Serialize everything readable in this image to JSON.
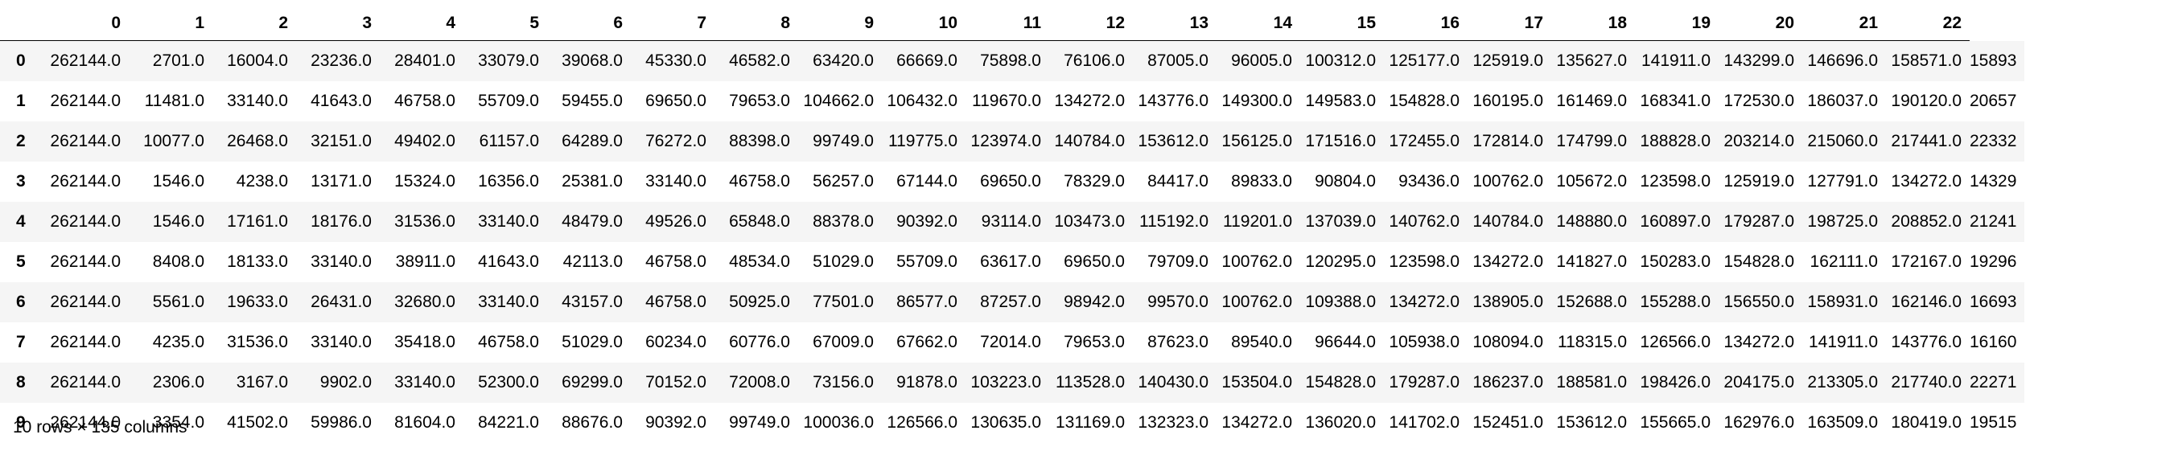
{
  "table": {
    "columns": [
      "0",
      "1",
      "2",
      "3",
      "4",
      "5",
      "6",
      "7",
      "8",
      "9",
      "10",
      "11",
      "12",
      "13",
      "14",
      "15",
      "16",
      "17",
      "18",
      "19",
      "20",
      "21",
      "22"
    ],
    "rows": [
      {
        "index": "0",
        "cells": [
          "262144.0",
          "2701.0",
          "16004.0",
          "23236.0",
          "28401.0",
          "33079.0",
          "39068.0",
          "45330.0",
          "46582.0",
          "63420.0",
          "66669.0",
          "75898.0",
          "76106.0",
          "87005.0",
          "96005.0",
          "100312.0",
          "125177.0",
          "125919.0",
          "135627.0",
          "141911.0",
          "143299.0",
          "146696.0",
          "158571.0",
          "15893"
        ]
      },
      {
        "index": "1",
        "cells": [
          "262144.0",
          "11481.0",
          "33140.0",
          "41643.0",
          "46758.0",
          "55709.0",
          "59455.0",
          "69650.0",
          "79653.0",
          "104662.0",
          "106432.0",
          "119670.0",
          "134272.0",
          "143776.0",
          "149300.0",
          "149583.0",
          "154828.0",
          "160195.0",
          "161469.0",
          "168341.0",
          "172530.0",
          "186037.0",
          "190120.0",
          "20657"
        ]
      },
      {
        "index": "2",
        "cells": [
          "262144.0",
          "10077.0",
          "26468.0",
          "32151.0",
          "49402.0",
          "61157.0",
          "64289.0",
          "76272.0",
          "88398.0",
          "99749.0",
          "119775.0",
          "123974.0",
          "140784.0",
          "153612.0",
          "156125.0",
          "171516.0",
          "172455.0",
          "172814.0",
          "174799.0",
          "188828.0",
          "203214.0",
          "215060.0",
          "217441.0",
          "22332"
        ]
      },
      {
        "index": "3",
        "cells": [
          "262144.0",
          "1546.0",
          "4238.0",
          "13171.0",
          "15324.0",
          "16356.0",
          "25381.0",
          "33140.0",
          "46758.0",
          "56257.0",
          "67144.0",
          "69650.0",
          "78329.0",
          "84417.0",
          "89833.0",
          "90804.0",
          "93436.0",
          "100762.0",
          "105672.0",
          "123598.0",
          "125919.0",
          "127791.0",
          "134272.0",
          "14329"
        ]
      },
      {
        "index": "4",
        "cells": [
          "262144.0",
          "1546.0",
          "17161.0",
          "18176.0",
          "31536.0",
          "33140.0",
          "48479.0",
          "49526.0",
          "65848.0",
          "88378.0",
          "90392.0",
          "93114.0",
          "103473.0",
          "115192.0",
          "119201.0",
          "137039.0",
          "140762.0",
          "140784.0",
          "148880.0",
          "160897.0",
          "179287.0",
          "198725.0",
          "208852.0",
          "21241"
        ]
      },
      {
        "index": "5",
        "cells": [
          "262144.0",
          "8408.0",
          "18133.0",
          "33140.0",
          "38911.0",
          "41643.0",
          "42113.0",
          "46758.0",
          "48534.0",
          "51029.0",
          "55709.0",
          "63617.0",
          "69650.0",
          "79709.0",
          "100762.0",
          "120295.0",
          "123598.0",
          "134272.0",
          "141827.0",
          "150283.0",
          "154828.0",
          "162111.0",
          "172167.0",
          "19296"
        ]
      },
      {
        "index": "6",
        "cells": [
          "262144.0",
          "5561.0",
          "19633.0",
          "26431.0",
          "32680.0",
          "33140.0",
          "43157.0",
          "46758.0",
          "50925.0",
          "77501.0",
          "86577.0",
          "87257.0",
          "98942.0",
          "99570.0",
          "100762.0",
          "109388.0",
          "134272.0",
          "138905.0",
          "152688.0",
          "155288.0",
          "156550.0",
          "158931.0",
          "162146.0",
          "16693"
        ]
      },
      {
        "index": "7",
        "cells": [
          "262144.0",
          "4235.0",
          "31536.0",
          "33140.0",
          "35418.0",
          "46758.0",
          "51029.0",
          "60234.0",
          "60776.0",
          "67009.0",
          "67662.0",
          "72014.0",
          "79653.0",
          "87623.0",
          "89540.0",
          "96644.0",
          "105938.0",
          "108094.0",
          "118315.0",
          "126566.0",
          "134272.0",
          "141911.0",
          "143776.0",
          "16160"
        ]
      },
      {
        "index": "8",
        "cells": [
          "262144.0",
          "2306.0",
          "3167.0",
          "9902.0",
          "33140.0",
          "52300.0",
          "69299.0",
          "70152.0",
          "72008.0",
          "73156.0",
          "91878.0",
          "103223.0",
          "113528.0",
          "140430.0",
          "153504.0",
          "154828.0",
          "179287.0",
          "186237.0",
          "188581.0",
          "198426.0",
          "204175.0",
          "213305.0",
          "217740.0",
          "22271"
        ]
      },
      {
        "index": "9",
        "cells": [
          "262144.0",
          "3354.0",
          "41502.0",
          "59986.0",
          "81604.0",
          "84221.0",
          "88676.0",
          "90392.0",
          "99749.0",
          "100036.0",
          "126566.0",
          "130635.0",
          "131169.0",
          "132323.0",
          "134272.0",
          "136020.0",
          "141702.0",
          "152451.0",
          "153612.0",
          "155665.0",
          "162976.0",
          "163509.0",
          "180419.0",
          "19515"
        ]
      }
    ]
  },
  "footer": {
    "shape_text": "10 rows × 135 columns"
  }
}
